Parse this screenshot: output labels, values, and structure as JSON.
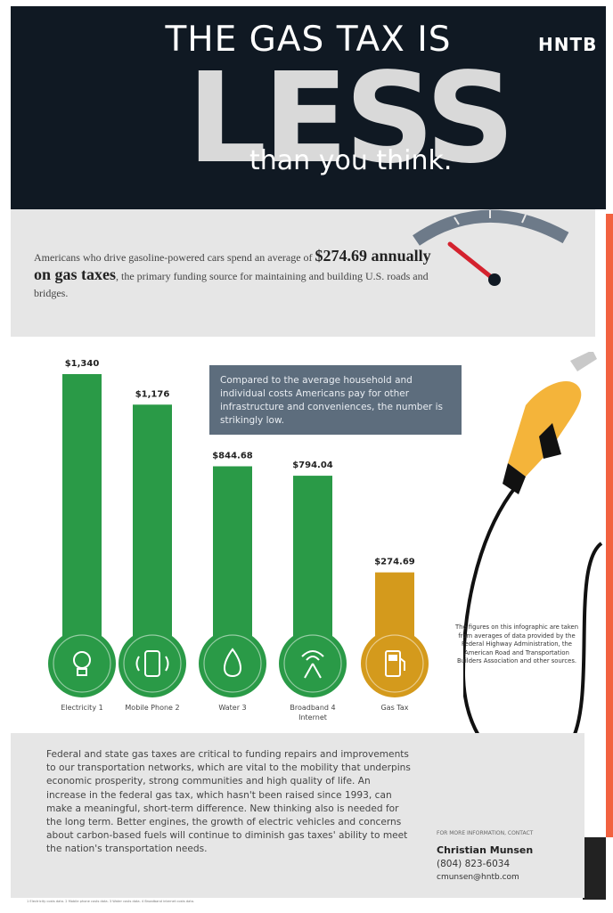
{
  "header": {
    "title_top": "THE GAS TAX IS",
    "title_big": "LESS",
    "title_bottom": "than you think.",
    "brand": "HNTB"
  },
  "intro": {
    "pre": "Americans who drive gasoline-powered cars spend an average of ",
    "highlight": "$274.69 annually on gas taxes",
    "post": ", the primary funding source for maintaining and building U.S. roads and bridges."
  },
  "callout": "Compared to the average household and individual costs Americans pay for other infrastructure and conveniences, the number is strikingly low.",
  "chart_data": {
    "type": "bar",
    "categories": [
      "Electricity",
      "Mobile Phone",
      "Water",
      "Broadband Internet",
      "Gas Tax"
    ],
    "values": [
      1340,
      1176,
      844.68,
      794.04,
      274.69
    ],
    "value_labels": [
      "$1,340",
      "$1,176",
      "$844.68",
      "$794.04",
      "$274.69"
    ],
    "category_labels": [
      "Electricity",
      "Mobile Phone",
      "Water",
      "Broadband",
      "Gas Tax"
    ],
    "category_labels_line2": [
      "",
      "",
      "",
      "Internet",
      ""
    ],
    "footnote_marks": [
      "1",
      "2",
      "3",
      "4",
      ""
    ],
    "icons": [
      "lightbulb-icon",
      "mobile-phone-icon",
      "water-drop-icon",
      "broadband-icon",
      "fuel-pump-icon"
    ],
    "colors": [
      "#2a9a47",
      "#2a9a47",
      "#2a9a47",
      "#2a9a47",
      "#d49a1c"
    ],
    "ylim": [
      0,
      1340
    ]
  },
  "footnote": "The figures on this infographic are taken from averages of data provided by the Federal Highway Administration, the American Road and Transportation Builders Association and other sources.",
  "body": "Federal and state gas taxes are critical to funding repairs and improvements to our transportation networks, which are vital to the mobility that underpins economic prosperity, strong communities and high quality of life. An increase in the federal gas tax, which hasn't been raised since 1993, can make a meaningful, short-term difference. New thinking also is needed for the long term. Better engines, the growth of electric vehicles and concerns about carbon-based fuels will continue to diminish gas taxes' ability to meet the nation's transportation needs.",
  "contact": {
    "lead": "FOR MORE INFORMATION, CONTACT",
    "name": "Christian Munsen",
    "phone": "(804) 823-6034",
    "email": "cmunsen@hntb.com"
  },
  "sources": "1 Electricity costs data. 2 Mobile phone costs data. 3 Water costs data. 4 Broadband internet costs data."
}
